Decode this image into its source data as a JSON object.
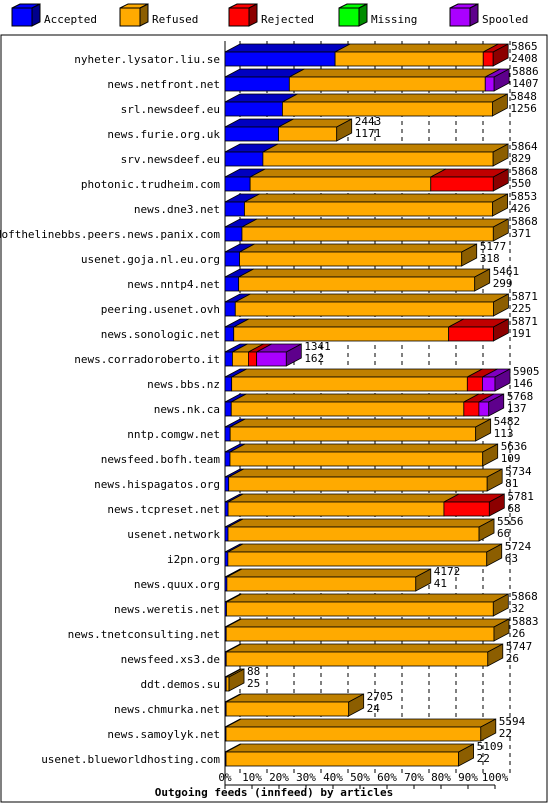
{
  "chart_data": {
    "type": "bar",
    "stacked": true,
    "orientation": "horizontal",
    "title": "Outgoing feeds (innfeed) by articles",
    "legend_position": "top",
    "xlim": [
      0,
      100
    ],
    "x_ticks": [
      "0%",
      "10%",
      "20%",
      "30%",
      "40%",
      "50%",
      "60%",
      "70%",
      "80%",
      "90%",
      "100%"
    ],
    "series": [
      {
        "name": "Accepted",
        "color": "#0000ff"
      },
      {
        "name": "Refused",
        "color": "#ffaa00"
      },
      {
        "name": "Rejected",
        "color": "#ff0000"
      },
      {
        "name": "Missing",
        "color": "#00ff00"
      },
      {
        "name": "Spooled",
        "color": "#aa00ff"
      }
    ],
    "rows": [
      {
        "label": "nyheter.lysator.liu.se",
        "total": 5865,
        "accepted": 2408,
        "segments": {
          "Accepted": 2408,
          "Refused": 3240,
          "Rejected": 217,
          "Missing": 0,
          "Spooled": 0
        }
      },
      {
        "label": "news.netfront.net",
        "total": 5886,
        "accepted": 1407,
        "segments": {
          "Accepted": 1407,
          "Refused": 4285,
          "Rejected": 0,
          "Missing": 0,
          "Spooled": 194
        }
      },
      {
        "label": "srl.newsdeef.eu",
        "total": 5848,
        "accepted": 1256,
        "segments": {
          "Accepted": 1256,
          "Refused": 4592,
          "Rejected": 0,
          "Missing": 0,
          "Spooled": 0
        }
      },
      {
        "label": "news.furie.org.uk",
        "total": 2443,
        "accepted": 1171,
        "segments": {
          "Accepted": 1171,
          "Refused": 1272,
          "Rejected": 0,
          "Missing": 0,
          "Spooled": 0
        }
      },
      {
        "label": "srv.newsdeef.eu",
        "total": 5864,
        "accepted": 829,
        "segments": {
          "Accepted": 829,
          "Refused": 5035,
          "Rejected": 0,
          "Missing": 0,
          "Spooled": 0
        }
      },
      {
        "label": "photonic.trudheim.com",
        "total": 5868,
        "accepted": 550,
        "segments": {
          "Accepted": 550,
          "Refused": 3950,
          "Rejected": 1368,
          "Missing": 0,
          "Spooled": 0
        }
      },
      {
        "label": "news.dne3.net",
        "total": 5853,
        "accepted": 426,
        "segments": {
          "Accepted": 426,
          "Refused": 5427,
          "Rejected": 0,
          "Missing": 0,
          "Spooled": 0
        }
      },
      {
        "label": "endofthelinebbs.peers.news.panix.com",
        "total": 5868,
        "accepted": 371,
        "segments": {
          "Accepted": 371,
          "Refused": 5497,
          "Rejected": 0,
          "Missing": 0,
          "Spooled": 0
        }
      },
      {
        "label": "usenet.goja.nl.eu.org",
        "total": 5177,
        "accepted": 318,
        "segments": {
          "Accepted": 318,
          "Refused": 4859,
          "Rejected": 0,
          "Missing": 0,
          "Spooled": 0
        }
      },
      {
        "label": "news.nntp4.net",
        "total": 5461,
        "accepted": 299,
        "segments": {
          "Accepted": 299,
          "Refused": 5162,
          "Rejected": 0,
          "Missing": 0,
          "Spooled": 0
        }
      },
      {
        "label": "peering.usenet.ovh",
        "total": 5871,
        "accepted": 225,
        "segments": {
          "Accepted": 225,
          "Refused": 5646,
          "Rejected": 0,
          "Missing": 0,
          "Spooled": 0
        }
      },
      {
        "label": "news.sonologic.net",
        "total": 5871,
        "accepted": 191,
        "segments": {
          "Accepted": 191,
          "Refused": 4700,
          "Rejected": 980,
          "Missing": 0,
          "Spooled": 0
        }
      },
      {
        "label": "news.corradoroberto.it",
        "total": 1341,
        "accepted": 162,
        "segments": {
          "Accepted": 162,
          "Refused": 350,
          "Rejected": 180,
          "Missing": 0,
          "Spooled": 649
        }
      },
      {
        "label": "news.bbs.nz",
        "total": 5905,
        "accepted": 146,
        "segments": {
          "Accepted": 146,
          "Refused": 5154,
          "Rejected": 330,
          "Missing": 0,
          "Spooled": 275
        }
      },
      {
        "label": "news.nk.ca",
        "total": 5768,
        "accepted": 137,
        "segments": {
          "Accepted": 137,
          "Refused": 5086,
          "Rejected": 330,
          "Missing": 0,
          "Spooled": 215
        }
      },
      {
        "label": "nntp.comgw.net",
        "total": 5482,
        "accepted": 113,
        "segments": {
          "Accepted": 113,
          "Refused": 5369,
          "Rejected": 0,
          "Missing": 0,
          "Spooled": 0
        }
      },
      {
        "label": "newsfeed.bofh.team",
        "total": 5636,
        "accepted": 109,
        "segments": {
          "Accepted": 109,
          "Refused": 5527,
          "Rejected": 0,
          "Missing": 0,
          "Spooled": 0
        }
      },
      {
        "label": "news.hispagatos.org",
        "total": 5734,
        "accepted": 81,
        "segments": {
          "Accepted": 81,
          "Refused": 5653,
          "Rejected": 0,
          "Missing": 0,
          "Spooled": 0
        }
      },
      {
        "label": "news.tcpreset.net",
        "total": 5781,
        "accepted": 68,
        "segments": {
          "Accepted": 68,
          "Refused": 4720,
          "Rejected": 993,
          "Missing": 0,
          "Spooled": 0
        }
      },
      {
        "label": "usenet.network",
        "total": 5556,
        "accepted": 66,
        "segments": {
          "Accepted": 66,
          "Refused": 5490,
          "Rejected": 0,
          "Missing": 0,
          "Spooled": 0
        }
      },
      {
        "label": "i2pn.org",
        "total": 5724,
        "accepted": 63,
        "segments": {
          "Accepted": 63,
          "Refused": 5661,
          "Rejected": 0,
          "Missing": 0,
          "Spooled": 0
        }
      },
      {
        "label": "news.quux.org",
        "total": 4172,
        "accepted": 41,
        "segments": {
          "Accepted": 41,
          "Refused": 4131,
          "Rejected": 0,
          "Missing": 0,
          "Spooled": 0
        }
      },
      {
        "label": "news.weretis.net",
        "total": 5868,
        "accepted": 32,
        "segments": {
          "Accepted": 32,
          "Refused": 5836,
          "Rejected": 0,
          "Missing": 0,
          "Spooled": 0
        }
      },
      {
        "label": "news.tnetconsulting.net",
        "total": 5883,
        "accepted": 26,
        "segments": {
          "Accepted": 26,
          "Refused": 5857,
          "Rejected": 0,
          "Missing": 0,
          "Spooled": 0
        }
      },
      {
        "label": "newsfeed.xs3.de",
        "total": 5747,
        "accepted": 26,
        "segments": {
          "Accepted": 26,
          "Refused": 5721,
          "Rejected": 0,
          "Missing": 0,
          "Spooled": 0
        }
      },
      {
        "label": "ddt.demos.su",
        "total": 88,
        "accepted": 25,
        "segments": {
          "Accepted": 25,
          "Refused": 63,
          "Rejected": 0,
          "Missing": 0,
          "Spooled": 0
        }
      },
      {
        "label": "news.chmurka.net",
        "total": 2705,
        "accepted": 24,
        "segments": {
          "Accepted": 24,
          "Refused": 2681,
          "Rejected": 0,
          "Missing": 0,
          "Spooled": 0
        }
      },
      {
        "label": "news.samoylyk.net",
        "total": 5594,
        "accepted": 22,
        "segments": {
          "Accepted": 22,
          "Refused": 5572,
          "Rejected": 0,
          "Missing": 0,
          "Spooled": 0
        }
      },
      {
        "label": "usenet.blueworldhosting.com",
        "total": 5109,
        "accepted": 22,
        "segments": {
          "Accepted": 22,
          "Refused": 5087,
          "Rejected": 0,
          "Missing": 0,
          "Spooled": 0
        }
      }
    ]
  }
}
